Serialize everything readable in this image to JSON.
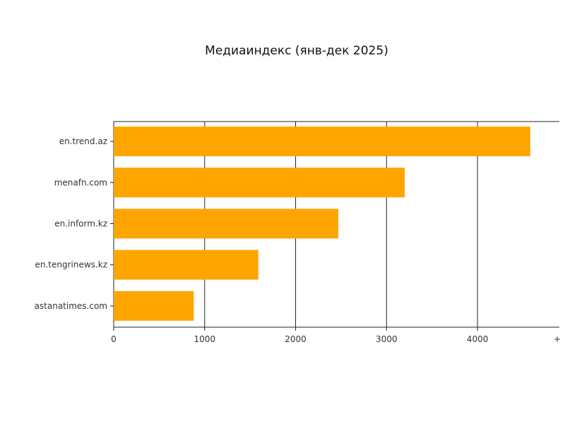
{
  "chart_data": {
    "type": "bar",
    "orientation": "horizontal",
    "title": "Медиаиндекс (янв-дек 2025)",
    "categories": [
      "en.trend.az",
      "menafn.com",
      "en.inform.kz",
      "en.tengrinews.kz",
      "astanatimes.com"
    ],
    "values": [
      4580,
      3200,
      2470,
      1590,
      880
    ],
    "xlabel": "",
    "ylabel": "",
    "xlim": [
      0,
      4900
    ],
    "x_ticks": [
      0,
      1000,
      2000,
      3000,
      4000
    ],
    "x_tick_labels": [
      "0",
      "1000",
      "2000",
      "3000",
      "4000"
    ],
    "x_tick_end_label": "+",
    "grid": "vertical",
    "bar_color": "#FFA500",
    "legend": "none"
  }
}
